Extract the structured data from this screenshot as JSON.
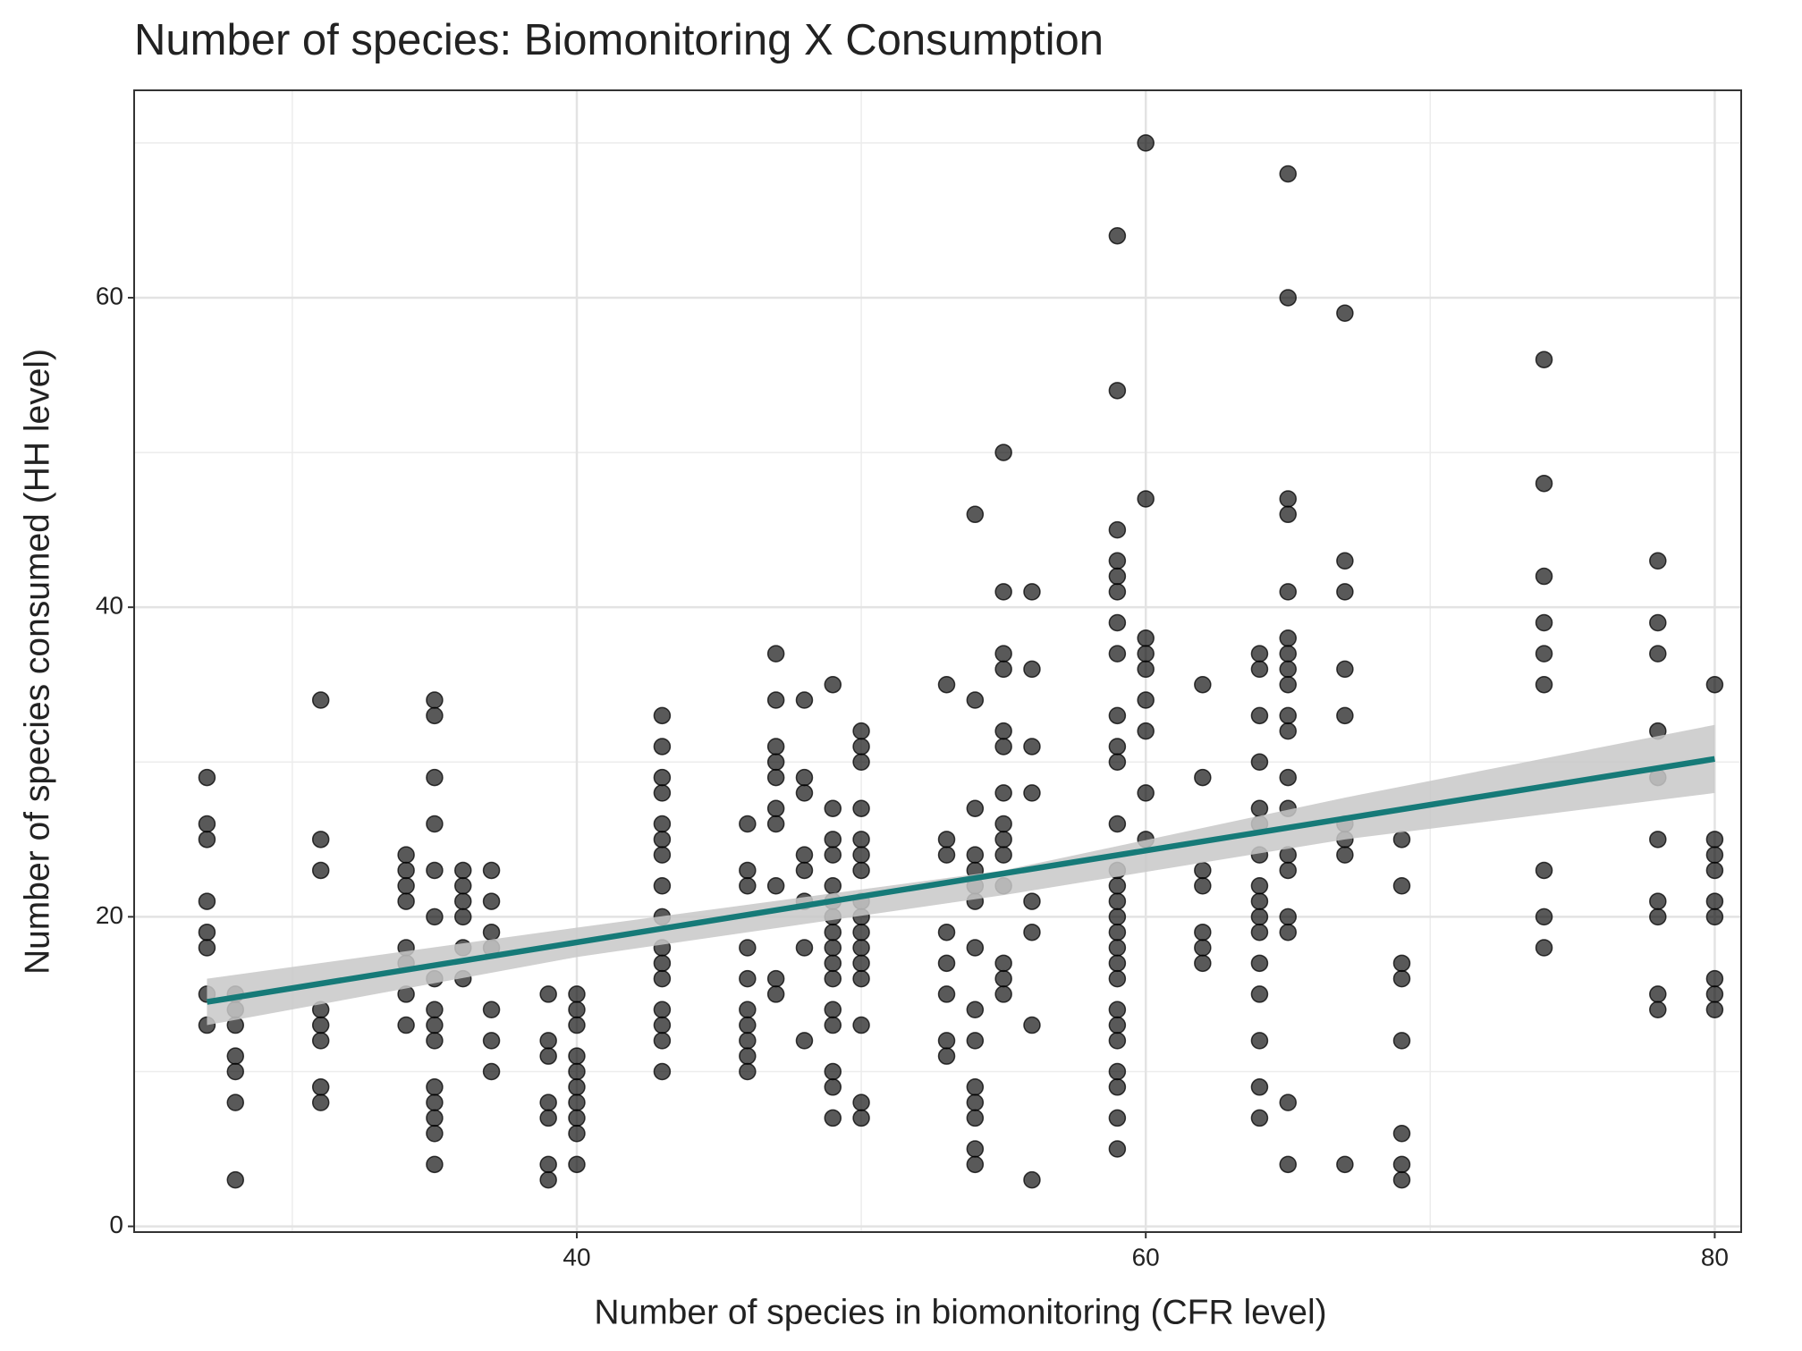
{
  "chart_data": {
    "type": "scatter",
    "title": "Number of species: Biomonitoring X Consumption",
    "x_label": "Number of species in biomonitoring (CFR level)",
    "y_label": "Number of species consumed (HH level)",
    "xlim": [
      24.44,
      80.93
    ],
    "ylim": [
      -0.37,
      73.4
    ],
    "xticks": [
      40,
      60,
      80
    ],
    "yticks": [
      0,
      20,
      40,
      60
    ],
    "x_minor_grid": [
      30,
      50,
      70
    ],
    "y_minor_grid": [
      10,
      30,
      50,
      70
    ],
    "grid": true,
    "color": "#000000",
    "fit_color": "#167a78",
    "band_color": "#c8c8c8",
    "fit": {
      "x": [
        27,
        40,
        55,
        67,
        80
      ],
      "y": [
        14.5,
        18.35,
        22.8,
        26.35,
        30.2
      ],
      "lower": [
        13.0,
        17.4,
        21.4,
        25.0,
        28.0
      ],
      "upper": [
        16.0,
        19.3,
        23.0,
        27.7,
        32.4
      ]
    },
    "points": [
      [
        27,
        29
      ],
      [
        27,
        26
      ],
      [
        27,
        25
      ],
      [
        27,
        21
      ],
      [
        27,
        19
      ],
      [
        27,
        18
      ],
      [
        27,
        15
      ],
      [
        27,
        13
      ],
      [
        28,
        15
      ],
      [
        28,
        14
      ],
      [
        28,
        13
      ],
      [
        28,
        11
      ],
      [
        28,
        10
      ],
      [
        28,
        8
      ],
      [
        28,
        3
      ],
      [
        31,
        34
      ],
      [
        31,
        25
      ],
      [
        31,
        23
      ],
      [
        31,
        14
      ],
      [
        31,
        13
      ],
      [
        31,
        12
      ],
      [
        31,
        9
      ],
      [
        31,
        8
      ],
      [
        34,
        24
      ],
      [
        34,
        23
      ],
      [
        34,
        22
      ],
      [
        34,
        21
      ],
      [
        34,
        18
      ],
      [
        34,
        17
      ],
      [
        34,
        15
      ],
      [
        34,
        13
      ],
      [
        35,
        34
      ],
      [
        35,
        33
      ],
      [
        35,
        29
      ],
      [
        35,
        26
      ],
      [
        35,
        23
      ],
      [
        35,
        20
      ],
      [
        35,
        16
      ],
      [
        35,
        14
      ],
      [
        35,
        13
      ],
      [
        35,
        12
      ],
      [
        35,
        9
      ],
      [
        35,
        8
      ],
      [
        35,
        7
      ],
      [
        35,
        6
      ],
      [
        35,
        4
      ],
      [
        36,
        23
      ],
      [
        36,
        22
      ],
      [
        36,
        21
      ],
      [
        36,
        20
      ],
      [
        36,
        18
      ],
      [
        36,
        16
      ],
      [
        37,
        23
      ],
      [
        37,
        21
      ],
      [
        37,
        19
      ],
      [
        37,
        18
      ],
      [
        37,
        14
      ],
      [
        37,
        12
      ],
      [
        37,
        10
      ],
      [
        39,
        15
      ],
      [
        39,
        12
      ],
      [
        39,
        11
      ],
      [
        39,
        8
      ],
      [
        39,
        7
      ],
      [
        39,
        4
      ],
      [
        39,
        3
      ],
      [
        40,
        15
      ],
      [
        40,
        14
      ],
      [
        40,
        13
      ],
      [
        40,
        11
      ],
      [
        40,
        10
      ],
      [
        40,
        9
      ],
      [
        40,
        8
      ],
      [
        40,
        7
      ],
      [
        40,
        6
      ],
      [
        40,
        4
      ],
      [
        43,
        33
      ],
      [
        43,
        31
      ],
      [
        43,
        29
      ],
      [
        43,
        28
      ],
      [
        43,
        26
      ],
      [
        43,
        25
      ],
      [
        43,
        24
      ],
      [
        43,
        22
      ],
      [
        43,
        20
      ],
      [
        43,
        18
      ],
      [
        43,
        17
      ],
      [
        43,
        16
      ],
      [
        43,
        14
      ],
      [
        43,
        13
      ],
      [
        43,
        12
      ],
      [
        43,
        10
      ],
      [
        46,
        26
      ],
      [
        46,
        23
      ],
      [
        46,
        22
      ],
      [
        46,
        18
      ],
      [
        46,
        16
      ],
      [
        46,
        14
      ],
      [
        46,
        13
      ],
      [
        46,
        12
      ],
      [
        46,
        11
      ],
      [
        46,
        10
      ],
      [
        47,
        37
      ],
      [
        47,
        34
      ],
      [
        47,
        31
      ],
      [
        47,
        30
      ],
      [
        47,
        29
      ],
      [
        47,
        27
      ],
      [
        47,
        26
      ],
      [
        47,
        22
      ],
      [
        47,
        16
      ],
      [
        47,
        15
      ],
      [
        48,
        34
      ],
      [
        48,
        29
      ],
      [
        48,
        28
      ],
      [
        48,
        24
      ],
      [
        48,
        23
      ],
      [
        48,
        21
      ],
      [
        48,
        18
      ],
      [
        48,
        12
      ],
      [
        49,
        35
      ],
      [
        49,
        27
      ],
      [
        49,
        25
      ],
      [
        49,
        24
      ],
      [
        49,
        22
      ],
      [
        49,
        21
      ],
      [
        49,
        20
      ],
      [
        49,
        19
      ],
      [
        49,
        18
      ],
      [
        49,
        17
      ],
      [
        49,
        16
      ],
      [
        49,
        14
      ],
      [
        49,
        13
      ],
      [
        49,
        10
      ],
      [
        49,
        9
      ],
      [
        49,
        7
      ],
      [
        50,
        32
      ],
      [
        50,
        31
      ],
      [
        50,
        30
      ],
      [
        50,
        27
      ],
      [
        50,
        25
      ],
      [
        50,
        24
      ],
      [
        50,
        23
      ],
      [
        50,
        21
      ],
      [
        50,
        20
      ],
      [
        50,
        19
      ],
      [
        50,
        18
      ],
      [
        50,
        17
      ],
      [
        50,
        16
      ],
      [
        50,
        13
      ],
      [
        50,
        8
      ],
      [
        50,
        7
      ],
      [
        53,
        35
      ],
      [
        53,
        25
      ],
      [
        53,
        24
      ],
      [
        53,
        19
      ],
      [
        53,
        17
      ],
      [
        53,
        15
      ],
      [
        53,
        12
      ],
      [
        53,
        11
      ],
      [
        54,
        46
      ],
      [
        54,
        34
      ],
      [
        54,
        27
      ],
      [
        54,
        24
      ],
      [
        54,
        23
      ],
      [
        54,
        22
      ],
      [
        54,
        21
      ],
      [
        54,
        18
      ],
      [
        54,
        14
      ],
      [
        54,
        12
      ],
      [
        54,
        9
      ],
      [
        54,
        8
      ],
      [
        54,
        7
      ],
      [
        54,
        5
      ],
      [
        54,
        4
      ],
      [
        55,
        50
      ],
      [
        55,
        41
      ],
      [
        55,
        37
      ],
      [
        55,
        36
      ],
      [
        55,
        32
      ],
      [
        55,
        31
      ],
      [
        55,
        28
      ],
      [
        55,
        26
      ],
      [
        55,
        25
      ],
      [
        55,
        24
      ],
      [
        55,
        22
      ],
      [
        55,
        17
      ],
      [
        55,
        16
      ],
      [
        55,
        15
      ],
      [
        56,
        41
      ],
      [
        56,
        36
      ],
      [
        56,
        31
      ],
      [
        56,
        28
      ],
      [
        56,
        21
      ],
      [
        56,
        19
      ],
      [
        56,
        13
      ],
      [
        56,
        3
      ],
      [
        59,
        64
      ],
      [
        59,
        54
      ],
      [
        59,
        45
      ],
      [
        59,
        43
      ],
      [
        59,
        42
      ],
      [
        59,
        41
      ],
      [
        59,
        39
      ],
      [
        59,
        37
      ],
      [
        59,
        33
      ],
      [
        59,
        31
      ],
      [
        59,
        30
      ],
      [
        59,
        26
      ],
      [
        59,
        23
      ],
      [
        59,
        22
      ],
      [
        59,
        21
      ],
      [
        59,
        20
      ],
      [
        59,
        19
      ],
      [
        59,
        18
      ],
      [
        59,
        17
      ],
      [
        59,
        16
      ],
      [
        59,
        14
      ],
      [
        59,
        13
      ],
      [
        59,
        12
      ],
      [
        59,
        10
      ],
      [
        59,
        9
      ],
      [
        59,
        7
      ],
      [
        59,
        5
      ],
      [
        60,
        70
      ],
      [
        60,
        47
      ],
      [
        60,
        38
      ],
      [
        60,
        37
      ],
      [
        60,
        36
      ],
      [
        60,
        34
      ],
      [
        60,
        32
      ],
      [
        60,
        28
      ],
      [
        60,
        25
      ],
      [
        62,
        35
      ],
      [
        62,
        29
      ],
      [
        62,
        23
      ],
      [
        62,
        22
      ],
      [
        62,
        19
      ],
      [
        62,
        18
      ],
      [
        62,
        17
      ],
      [
        64,
        37
      ],
      [
        64,
        36
      ],
      [
        64,
        33
      ],
      [
        64,
        30
      ],
      [
        64,
        27
      ],
      [
        64,
        26
      ],
      [
        64,
        24
      ],
      [
        64,
        22
      ],
      [
        64,
        21
      ],
      [
        64,
        20
      ],
      [
        64,
        19
      ],
      [
        64,
        17
      ],
      [
        64,
        15
      ],
      [
        64,
        12
      ],
      [
        64,
        9
      ],
      [
        64,
        7
      ],
      [
        65,
        68
      ],
      [
        65,
        60
      ],
      [
        65,
        47
      ],
      [
        65,
        46
      ],
      [
        65,
        41
      ],
      [
        65,
        38
      ],
      [
        65,
        37
      ],
      [
        65,
        36
      ],
      [
        65,
        35
      ],
      [
        65,
        33
      ],
      [
        65,
        32
      ],
      [
        65,
        29
      ],
      [
        65,
        27
      ],
      [
        65,
        24
      ],
      [
        65,
        23
      ],
      [
        65,
        20
      ],
      [
        65,
        19
      ],
      [
        65,
        8
      ],
      [
        65,
        4
      ],
      [
        67,
        59
      ],
      [
        67,
        43
      ],
      [
        67,
        41
      ],
      [
        67,
        36
      ],
      [
        67,
        33
      ],
      [
        67,
        26
      ],
      [
        67,
        25
      ],
      [
        67,
        24
      ],
      [
        67,
        4
      ],
      [
        69,
        25
      ],
      [
        69,
        22
      ],
      [
        69,
        17
      ],
      [
        69,
        16
      ],
      [
        69,
        12
      ],
      [
        69,
        6
      ],
      [
        69,
        4
      ],
      [
        69,
        3
      ],
      [
        74,
        56
      ],
      [
        74,
        48
      ],
      [
        74,
        42
      ],
      [
        74,
        39
      ],
      [
        74,
        37
      ],
      [
        74,
        35
      ],
      [
        74,
        23
      ],
      [
        74,
        20
      ],
      [
        74,
        18
      ],
      [
        78,
        43
      ],
      [
        78,
        39
      ],
      [
        78,
        37
      ],
      [
        78,
        32
      ],
      [
        78,
        29
      ],
      [
        78,
        25
      ],
      [
        78,
        21
      ],
      [
        78,
        20
      ],
      [
        78,
        15
      ],
      [
        78,
        14
      ],
      [
        80,
        35
      ],
      [
        80,
        25
      ],
      [
        80,
        24
      ],
      [
        80,
        23
      ],
      [
        80,
        21
      ],
      [
        80,
        20
      ],
      [
        80,
        16
      ],
      [
        80,
        15
      ],
      [
        80,
        14
      ]
    ]
  }
}
